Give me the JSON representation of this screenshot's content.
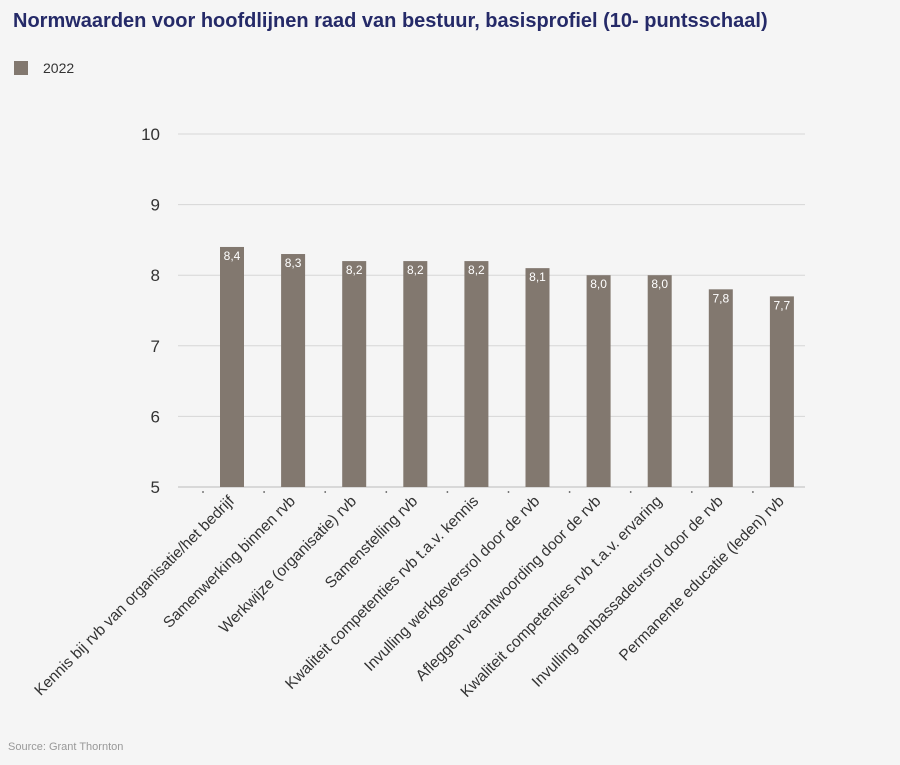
{
  "chart_data": {
    "type": "bar",
    "title": "Normwaarden voor hoofdlijnen raad van bestuur, basisprofiel (10- puntsschaal)",
    "categories": [
      "Kennis bij rvb van organisatie/het bedrijf",
      "Samenwerking binnen rvb",
      "Werkwijze (organisatie) rvb",
      "Samenstelling rvb",
      "Kwaliteit competenties rvb t.a.v. kennis",
      "Invulling werkgeversrol door de rvb",
      "Afleggen verantwoording door de rvb",
      "Kwaliteit competenties rvb t.a.v. ervaring",
      "Invulling ambassadeursrol door de rvb",
      "Permanente educatie (leden) rvb"
    ],
    "series": [
      {
        "name": "2022",
        "values": [
          8.4,
          8.3,
          8.2,
          8.2,
          8.2,
          8.1,
          8.0,
          8.0,
          7.8,
          7.7
        ],
        "color": "#82786f"
      }
    ],
    "data_labels": [
      "8,4",
      "8,3",
      "8,2",
      "8,2",
      "8,2",
      "8,1",
      "8,0",
      "8,0",
      "7,8",
      "7,7"
    ],
    "ylim": [
      5,
      10
    ],
    "yticks": [
      "5",
      "6",
      "7",
      "8",
      "9",
      "10"
    ],
    "grid": true,
    "legend_position": "top-left",
    "xlabel": "",
    "ylabel": ""
  },
  "source": "Source: Grant Thornton"
}
